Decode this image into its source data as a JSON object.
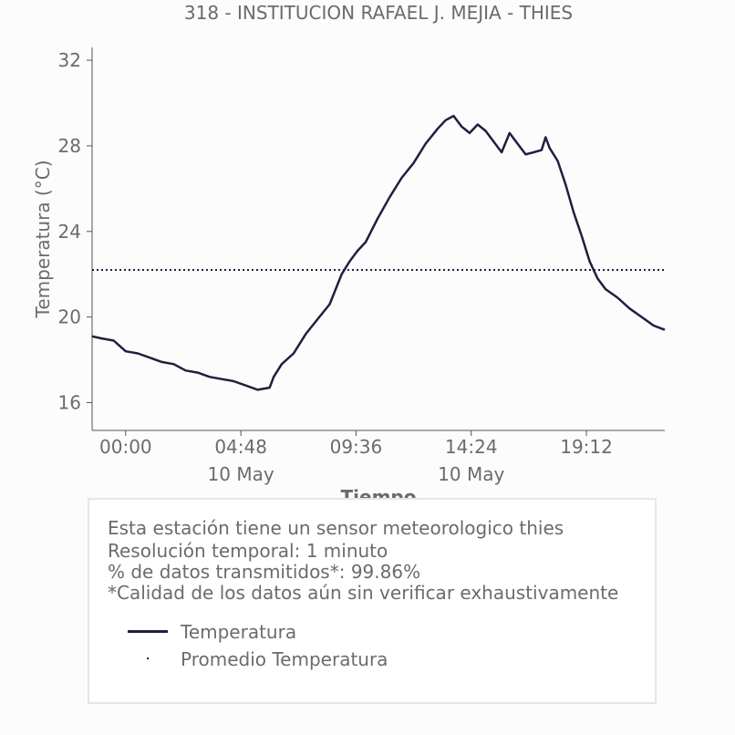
{
  "chart_data": {
    "type": "line",
    "title": "318 - INSTITUCION RAFAEL J. MEJIA - THIES",
    "xlabel": "Tiempo",
    "ylabel": "Temperatura (°C)",
    "ylim": [
      14.7,
      32.6
    ],
    "y_ticks": [
      16,
      20,
      24,
      28,
      32
    ],
    "x_range": [
      "2024-05-09T22:36",
      "2024-05-10T22:28"
    ],
    "x_ticks": [
      {
        "time": "2024-05-10T00:00",
        "label": "00:00",
        "sublabel": ""
      },
      {
        "time": "2024-05-10T04:48",
        "label": "04:48",
        "sublabel": "10 May"
      },
      {
        "time": "2024-05-10T09:36",
        "label": "09:36",
        "sublabel": ""
      },
      {
        "time": "2024-05-10T14:24",
        "label": "14:24",
        "sublabel": "10 May"
      },
      {
        "time": "2024-05-10T19:12",
        "label": "19:12",
        "sublabel": ""
      }
    ],
    "grid": false,
    "series": [
      {
        "name": "Temperatura",
        "color": "#1f1f40",
        "style": "solid",
        "points": [
          [
            "2024-05-09T22:36",
            19.1
          ],
          [
            "2024-05-09T23:00",
            19.0
          ],
          [
            "2024-05-09T23:30",
            18.9
          ],
          [
            "2024-05-10T00:00",
            18.4
          ],
          [
            "2024-05-10T00:30",
            18.3
          ],
          [
            "2024-05-10T01:00",
            18.1
          ],
          [
            "2024-05-10T01:30",
            17.9
          ],
          [
            "2024-05-10T02:00",
            17.8
          ],
          [
            "2024-05-10T02:30",
            17.5
          ],
          [
            "2024-05-10T03:00",
            17.4
          ],
          [
            "2024-05-10T03:30",
            17.2
          ],
          [
            "2024-05-10T04:00",
            17.1
          ],
          [
            "2024-05-10T04:30",
            17.0
          ],
          [
            "2024-05-10T05:00",
            16.8
          ],
          [
            "2024-05-10T05:30",
            16.6
          ],
          [
            "2024-05-10T06:00",
            16.7
          ],
          [
            "2024-05-10T06:10",
            17.2
          ],
          [
            "2024-05-10T06:30",
            17.8
          ],
          [
            "2024-05-10T07:00",
            18.3
          ],
          [
            "2024-05-10T07:30",
            19.2
          ],
          [
            "2024-05-10T08:00",
            19.9
          ],
          [
            "2024-05-10T08:30",
            20.6
          ],
          [
            "2024-05-10T09:00",
            22.0
          ],
          [
            "2024-05-10T09:20",
            22.6
          ],
          [
            "2024-05-10T09:40",
            23.1
          ],
          [
            "2024-05-10T10:00",
            23.5
          ],
          [
            "2024-05-10T10:30",
            24.6
          ],
          [
            "2024-05-10T11:00",
            25.6
          ],
          [
            "2024-05-10T11:30",
            26.5
          ],
          [
            "2024-05-10T12:00",
            27.2
          ],
          [
            "2024-05-10T12:30",
            28.1
          ],
          [
            "2024-05-10T13:00",
            28.8
          ],
          [
            "2024-05-10T13:20",
            29.2
          ],
          [
            "2024-05-10T13:40",
            29.4
          ],
          [
            "2024-05-10T14:00",
            28.9
          ],
          [
            "2024-05-10T14:20",
            28.6
          ],
          [
            "2024-05-10T14:40",
            29.0
          ],
          [
            "2024-05-10T15:00",
            28.7
          ],
          [
            "2024-05-10T15:20",
            28.2
          ],
          [
            "2024-05-10T15:40",
            27.7
          ],
          [
            "2024-05-10T16:00",
            28.6
          ],
          [
            "2024-05-10T16:20",
            28.1
          ],
          [
            "2024-05-10T16:40",
            27.6
          ],
          [
            "2024-05-10T17:00",
            27.7
          ],
          [
            "2024-05-10T17:20",
            27.8
          ],
          [
            "2024-05-10T17:30",
            28.4
          ],
          [
            "2024-05-10T17:40",
            27.9
          ],
          [
            "2024-05-10T18:00",
            27.3
          ],
          [
            "2024-05-10T18:20",
            26.2
          ],
          [
            "2024-05-10T18:40",
            24.9
          ],
          [
            "2024-05-10T19:00",
            23.8
          ],
          [
            "2024-05-10T19:20",
            22.6
          ],
          [
            "2024-05-10T19:40",
            21.8
          ],
          [
            "2024-05-10T20:00",
            21.3
          ],
          [
            "2024-05-10T20:30",
            20.9
          ],
          [
            "2024-05-10T21:00",
            20.4
          ],
          [
            "2024-05-10T21:30",
            20.0
          ],
          [
            "2024-05-10T22:00",
            19.6
          ],
          [
            "2024-05-10T22:28",
            19.4
          ]
        ]
      },
      {
        "name": "Promedio Temperatura",
        "color": "#1f1f40",
        "style": "dotted",
        "value": 22.2
      }
    ]
  },
  "info": {
    "line1": "Esta estación tiene un sensor meteorologico thies",
    "line2": "Resolución temporal: 1 minuto",
    "line3": "% de datos transmitidos*: 99.86%",
    "line4": "*Calidad de los datos aún sin verificar exhaustivamente"
  },
  "legend": [
    {
      "label": "Temperatura",
      "style": "solid"
    },
    {
      "label": "Promedio Temperatura",
      "style": "dotted"
    }
  ]
}
